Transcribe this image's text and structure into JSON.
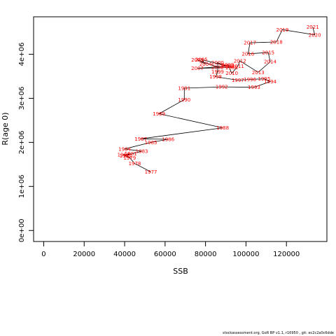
{
  "chart_data": {
    "type": "line",
    "xlabel": "SSB",
    "ylabel": "R(age 0)",
    "xlim": [
      -5000,
      140000
    ],
    "ylim": [
      -250000,
      4850000
    ],
    "x_ticks": [
      0,
      20000,
      40000,
      60000,
      80000,
      100000,
      120000
    ],
    "x_tick_labels": [
      "0",
      "20000",
      "40000",
      "60000",
      "80000",
      "100000",
      "120000"
    ],
    "y_ticks": [
      0,
      1000000,
      2000000,
      3000000,
      4000000
    ],
    "y_tick_labels": [
      "0e+00",
      "1e+06",
      "2e+06",
      "3e+06",
      "4e+06"
    ],
    "grid": false,
    "line_color": "#000000",
    "label_color": "#ff0000",
    "points": [
      {
        "year": "1977",
        "x": 53000,
        "y": 1330000
      },
      {
        "year": "1978",
        "x": 45000,
        "y": 1520000
      },
      {
        "year": "1979",
        "x": 42500,
        "y": 1650000
      },
      {
        "year": "1980",
        "x": 39500,
        "y": 1720000
      },
      {
        "year": "1981",
        "x": 43000,
        "y": 1740000
      },
      {
        "year": "1982",
        "x": 40500,
        "y": 1700000
      },
      {
        "year": "1983",
        "x": 48500,
        "y": 1800000
      },
      {
        "year": "1984",
        "x": 40000,
        "y": 1850000
      },
      {
        "year": "1985",
        "x": 53000,
        "y": 2000000
      },
      {
        "year": "1986",
        "x": 61500,
        "y": 2070000
      },
      {
        "year": "1987",
        "x": 48000,
        "y": 2080000
      },
      {
        "year": "1988",
        "x": 88500,
        "y": 2330000
      },
      {
        "year": "1989",
        "x": 57000,
        "y": 2650000
      },
      {
        "year": "1990",
        "x": 69500,
        "y": 2970000
      },
      {
        "year": "1991",
        "x": 69500,
        "y": 3230000
      },
      {
        "year": "1992",
        "x": 88000,
        "y": 3260000
      },
      {
        "year": "1993",
        "x": 104000,
        "y": 3250000
      },
      {
        "year": "1994",
        "x": 112000,
        "y": 3380000
      },
      {
        "year": "1995",
        "x": 109000,
        "y": 3440000
      },
      {
        "year": "1996",
        "x": 102000,
        "y": 3430000
      },
      {
        "year": "1997",
        "x": 96000,
        "y": 3410000
      },
      {
        "year": "1998",
        "x": 85000,
        "y": 3490000
      },
      {
        "year": "1999",
        "x": 86000,
        "y": 3600000
      },
      {
        "year": "2000",
        "x": 86000,
        "y": 3810000
      },
      {
        "year": "2001",
        "x": 90000,
        "y": 3730000
      },
      {
        "year": "2002",
        "x": 86000,
        "y": 3710000
      },
      {
        "year": "2003",
        "x": 76000,
        "y": 3870000
      },
      {
        "year": "2004",
        "x": 80000,
        "y": 3780000
      },
      {
        "year": "2005",
        "x": 78000,
        "y": 3880000
      },
      {
        "year": "2006",
        "x": 91000,
        "y": 3730000
      },
      {
        "year": "2007",
        "x": 76000,
        "y": 3680000
      },
      {
        "year": "2008",
        "x": 93000,
        "y": 3700000
      },
      {
        "year": "2009",
        "x": 91000,
        "y": 3760000
      },
      {
        "year": "2010",
        "x": 93000,
        "y": 3570000
      },
      {
        "year": "2011",
        "x": 96000,
        "y": 3730000
      },
      {
        "year": "2012",
        "x": 97000,
        "y": 3850000
      },
      {
        "year": "2013",
        "x": 106000,
        "y": 3590000
      },
      {
        "year": "2014",
        "x": 112000,
        "y": 3830000
      },
      {
        "year": "2015",
        "x": 111000,
        "y": 4040000
      },
      {
        "year": "2016",
        "x": 101000,
        "y": 4010000
      },
      {
        "year": "2017",
        "x": 102000,
        "y": 4260000
      },
      {
        "year": "2018",
        "x": 115000,
        "y": 4280000
      },
      {
        "year": "2019",
        "x": 118000,
        "y": 4560000
      },
      {
        "year": "2020",
        "x": 134000,
        "y": 4440000
      },
      {
        "year": "2021",
        "x": 133000,
        "y": 4620000
      }
    ]
  },
  "footer": {
    "text": "stockassessment.org,  GoR BP  v1.1, r16950 ,  git:  ec2c2a0c6dde"
  }
}
